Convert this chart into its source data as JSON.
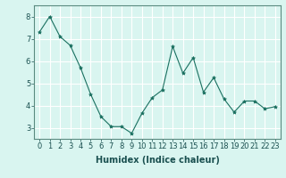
{
  "x": [
    0,
    1,
    2,
    3,
    4,
    5,
    6,
    7,
    8,
    9,
    10,
    11,
    12,
    13,
    14,
    15,
    16,
    17,
    18,
    19,
    20,
    21,
    22,
    23
  ],
  "y": [
    7.3,
    8.0,
    7.1,
    6.7,
    5.7,
    4.5,
    3.5,
    3.05,
    3.05,
    2.75,
    3.65,
    4.35,
    4.7,
    6.65,
    5.45,
    6.15,
    4.6,
    5.25,
    4.3,
    3.7,
    4.2,
    4.2,
    3.85,
    3.95
  ],
  "line_color": "#1a7060",
  "marker": "*",
  "marker_size": 3,
  "bg_color": "#d9f5f0",
  "grid_color": "#ffffff",
  "xlabel": "Humidex (Indice chaleur)",
  "ylabel": "",
  "title": "",
  "xlim": [
    -0.5,
    23.5
  ],
  "ylim": [
    2.5,
    8.5
  ],
  "yticks": [
    3,
    4,
    5,
    6,
    7,
    8
  ],
  "xticks": [
    0,
    1,
    2,
    3,
    4,
    5,
    6,
    7,
    8,
    9,
    10,
    11,
    12,
    13,
    14,
    15,
    16,
    17,
    18,
    19,
    20,
    21,
    22,
    23
  ],
  "tick_fontsize": 6,
  "xlabel_fontsize": 7,
  "label_color": "#1a5050",
  "spine_color": "#5a8a80"
}
